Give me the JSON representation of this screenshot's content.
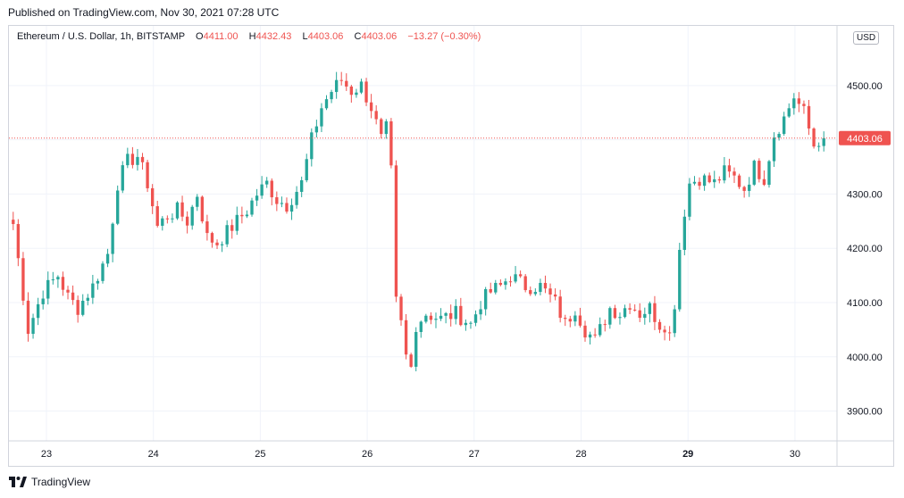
{
  "header": {
    "published": "Published on TradingView.com, Nov 30, 2021 07:28 UTC"
  },
  "legend": {
    "symbol": "Ethereum / U.S. Dollar, 1h, BITSTAMP",
    "o_label": "O",
    "o_value": "4411.00",
    "h_label": "H",
    "h_value": "4432.43",
    "l_label": "L",
    "l_value": "4403.06",
    "c_label": "C",
    "c_value": "4403.06",
    "change": "−13.27 (−0.30%)"
  },
  "currency_button": "USD",
  "last_price_label": "4403.06",
  "footer": {
    "brand": "TradingView"
  },
  "colors": {
    "up": "#26a69a",
    "down": "#ef5350",
    "grid": "#f0f3fa",
    "border": "#d1d4dc"
  },
  "chart_data": {
    "type": "candlestick",
    "title": "Ethereum / U.S. Dollar, 1h, BITSTAMP",
    "x_ticks": [
      "23",
      "24",
      "25",
      "26",
      "27",
      "28",
      "29",
      "30"
    ],
    "x_ticks_bold": [
      "29"
    ],
    "y_ticks": [
      "3900.00",
      "4000.00",
      "4100.00",
      "4200.00",
      "4300.00",
      "4400.00",
      "4500.00"
    ],
    "ylim": [
      3845,
      4610
    ],
    "last_price": 4403.06,
    "anchors": [
      [
        0,
        4245
      ],
      [
        3,
        4050
      ],
      [
        6,
        4120
      ],
      [
        9,
        4150
      ],
      [
        11,
        4110
      ],
      [
        13,
        4090
      ],
      [
        16,
        4130
      ],
      [
        19,
        4190
      ],
      [
        21,
        4320
      ],
      [
        23,
        4360
      ],
      [
        25,
        4370
      ],
      [
        27,
        4320
      ],
      [
        29,
        4240
      ],
      [
        31,
        4260
      ],
      [
        33,
        4270
      ],
      [
        35,
        4250
      ],
      [
        37,
        4300
      ],
      [
        39,
        4220
      ],
      [
        41,
        4210
      ],
      [
        44,
        4240
      ],
      [
        47,
        4270
      ],
      [
        49,
        4300
      ],
      [
        51,
        4320
      ],
      [
        53,
        4290
      ],
      [
        55,
        4280
      ],
      [
        58,
        4320
      ],
      [
        60,
        4400
      ],
      [
        62,
        4460
      ],
      [
        64,
        4490
      ],
      [
        66,
        4510
      ],
      [
        68,
        4490
      ],
      [
        70,
        4500
      ],
      [
        72,
        4460
      ],
      [
        74,
        4400
      ],
      [
        75,
        4420
      ],
      [
        76,
        4340
      ],
      [
        77,
        4100
      ],
      [
        78,
        4060
      ],
      [
        79,
        4000
      ],
      [
        80,
        3980
      ],
      [
        81,
        4060
      ],
      [
        83,
        4080
      ],
      [
        86,
        4070
      ],
      [
        89,
        4080
      ],
      [
        92,
        4060
      ],
      [
        94,
        4100
      ],
      [
        96,
        4120
      ],
      [
        98,
        4130
      ],
      [
        100,
        4150
      ],
      [
        103,
        4130
      ],
      [
        106,
        4130
      ],
      [
        109,
        4100
      ],
      [
        111,
        4060
      ],
      [
        113,
        4090
      ],
      [
        115,
        4050
      ],
      [
        117,
        4030
      ],
      [
        120,
        4090
      ],
      [
        122,
        4080
      ],
      [
        124,
        4100
      ],
      [
        126,
        4080
      ],
      [
        128,
        4090
      ],
      [
        130,
        4060
      ],
      [
        131,
        4060
      ],
      [
        132,
        4040
      ],
      [
        133,
        4100
      ],
      [
        134,
        4200
      ],
      [
        135,
        4270
      ],
      [
        136,
        4320
      ],
      [
        138,
        4330
      ],
      [
        141,
        4320
      ],
      [
        143,
        4340
      ],
      [
        145,
        4330
      ],
      [
        147,
        4310
      ],
      [
        149,
        4350
      ],
      [
        151,
        4330
      ],
      [
        153,
        4410
      ],
      [
        155,
        4440
      ],
      [
        157,
        4480
      ],
      [
        159,
        4450
      ],
      [
        160,
        4420
      ],
      [
        161,
        4390
      ],
      [
        162,
        4400
      ],
      [
        163,
        4403
      ]
    ]
  }
}
